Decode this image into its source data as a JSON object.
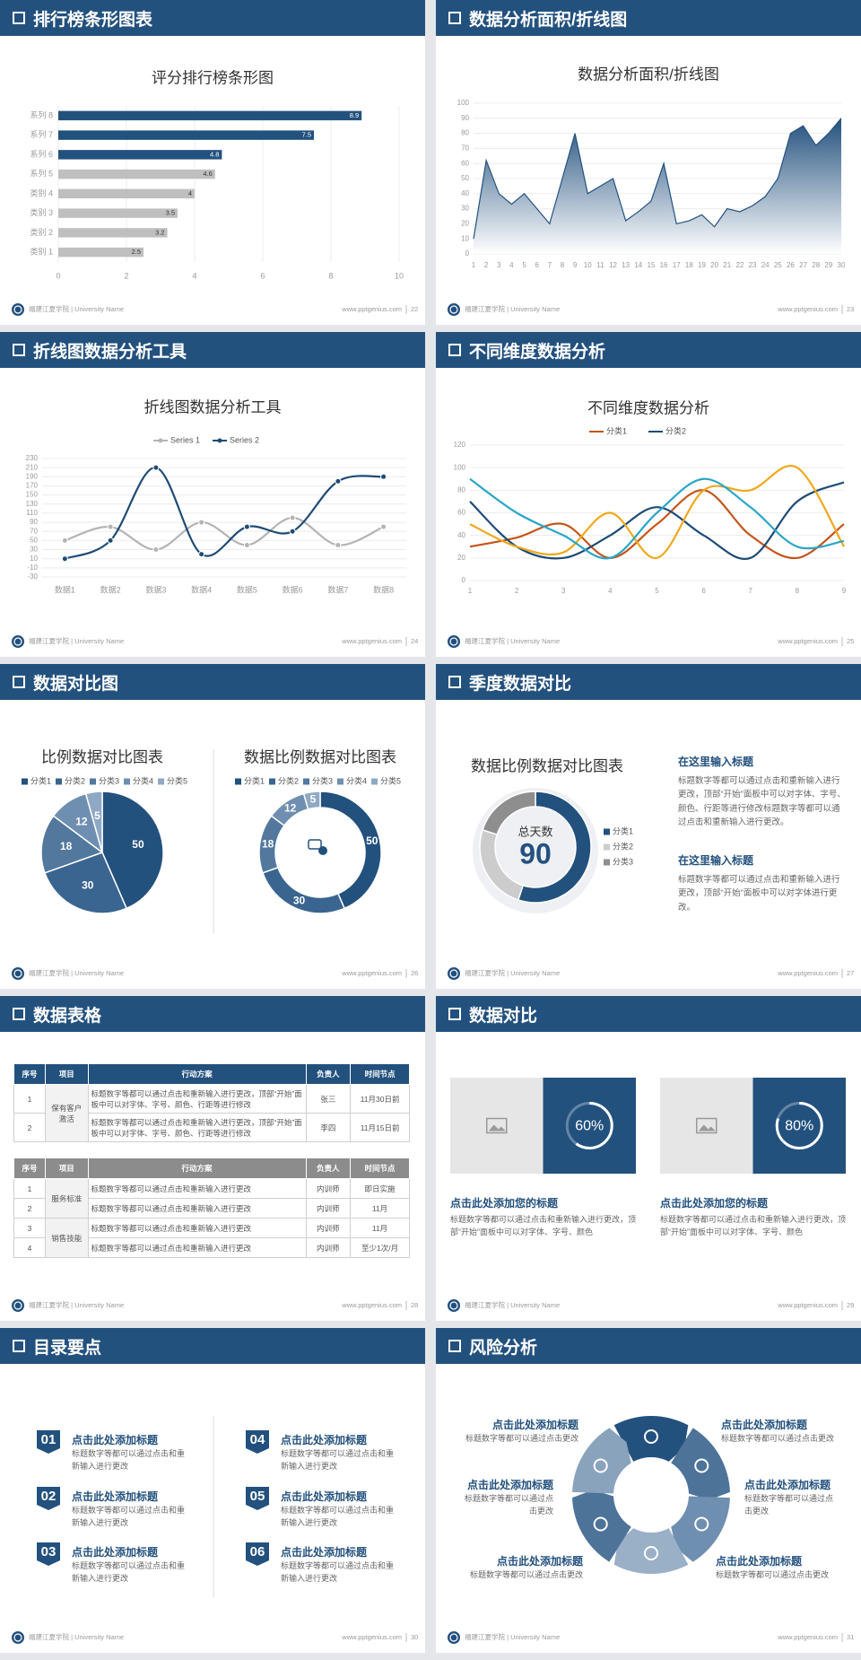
{
  "footer": {
    "school": "福建江夏学院 | University Name",
    "site": "www.pptgenius.com"
  },
  "slides": [
    {
      "title": "排行榜条形图表",
      "page": "22",
      "chart_data": {
        "type": "bar",
        "title": "评分排行榜条形图",
        "categories": [
          "系列 8",
          "系列 7",
          "系列 6",
          "系列 5",
          "类别 4",
          "类别 3",
          "类别 2",
          "类别 1"
        ],
        "values": [
          8.9,
          7.5,
          4.8,
          4.6,
          4,
          3.5,
          3.2,
          2.5
        ],
        "colors": [
          "#23517e",
          "#23517e",
          "#23517e",
          "#bfbfbf",
          "#bfbfbf",
          "#bfbfbf",
          "#bfbfbf",
          "#bfbfbf"
        ],
        "xlim": [
          0,
          10
        ],
        "xticks": [
          0,
          2,
          4,
          6,
          8,
          10
        ],
        "grid": true
      }
    },
    {
      "title": "数据分析面积/折线图",
      "page": "23",
      "chart_data": {
        "type": "area",
        "title": "数据分析面积/折线图",
        "x": [
          1,
          2,
          3,
          4,
          5,
          6,
          7,
          8,
          9,
          10,
          11,
          12,
          13,
          14,
          15,
          16,
          17,
          18,
          19,
          20,
          21,
          22,
          23,
          24,
          25,
          26,
          27,
          28,
          29,
          30
        ],
        "values": [
          10,
          62,
          40,
          33,
          40,
          30,
          20,
          50,
          80,
          40,
          45,
          50,
          22,
          28,
          35,
          60,
          20,
          22,
          26,
          18,
          30,
          28,
          32,
          38,
          50,
          80,
          85,
          72,
          80,
          90
        ],
        "color": "#23517e",
        "xlim": [
          1,
          30
        ],
        "ylim": [
          0,
          100
        ],
        "yticks": [
          0,
          10,
          20,
          30,
          40,
          50,
          60,
          70,
          80,
          90,
          100
        ],
        "grid": true
      }
    },
    {
      "title": "折线图数据分析工具",
      "page": "24",
      "chart_data": {
        "type": "line",
        "title": "折线图数据分析工具",
        "categories": [
          "数据1",
          "数据2",
          "数据3",
          "数据4",
          "数据5",
          "数据6",
          "数据7",
          "数据8"
        ],
        "series": [
          {
            "name": "Series 1",
            "color": "#b4b4b4",
            "values": [
              50,
              80,
              30,
              90,
              40,
              100,
              40,
              80
            ]
          },
          {
            "name": "Series 2",
            "color": "#1e4b75",
            "values": [
              10,
              50,
              210,
              20,
              80,
              70,
              180,
              190
            ]
          }
        ],
        "ylim": [
          -30,
          230
        ],
        "yticks": [
          -30,
          -10,
          10,
          30,
          50,
          70,
          90,
          110,
          130,
          150,
          170,
          190,
          210,
          230
        ],
        "grid": true,
        "smooth": true,
        "markers": true
      }
    },
    {
      "title": "不同维度数据分析",
      "page": "25",
      "chart_data": {
        "type": "line",
        "title": "不同维度数据分析",
        "x": [
          1,
          2,
          3,
          4,
          5,
          6,
          7,
          8,
          9
        ],
        "xlim": [
          1,
          9
        ],
        "series": [
          {
            "name": "分类1",
            "color": "#c4551b",
            "values": [
              30,
              38,
              50,
              20,
              50,
              80,
              40,
              20,
              50
            ]
          },
          {
            "name": "分类2",
            "color": "#1e4b75",
            "values": [
              70,
              30,
              20,
              40,
              65,
              40,
              20,
              70,
              87
            ]
          },
          {
            "color": "#f0a81c",
            "values": [
              50,
              30,
              25,
              60,
              20,
              80,
              80,
              100,
              30
            ]
          },
          {
            "color": "#2aa6c6",
            "values": [
              90,
              60,
              40,
              20,
              60,
              90,
              65,
              30,
              35
            ]
          }
        ],
        "ylim": [
          0,
          120
        ],
        "yticks": [
          0,
          20,
          40,
          60,
          80,
          100,
          120
        ],
        "grid": true,
        "smooth": true
      }
    },
    {
      "title": "数据对比图",
      "page": "26",
      "chart_data": [
        {
          "type": "pie",
          "title": "比例数据对比图表",
          "categories": [
            "分类1",
            "分类2",
            "分类3",
            "分类4",
            "分类5"
          ],
          "values": [
            50,
            30,
            18,
            12,
            5
          ],
          "colors": [
            "#23517e",
            "#3a6590",
            "#52789e",
            "#6f8fb0",
            "#8fa9c4"
          ]
        },
        {
          "type": "donut",
          "title": "数据比例数据对比图表",
          "categories": [
            "分类1",
            "分类2",
            "分类3",
            "分类4",
            "分类5"
          ],
          "values": [
            50,
            30,
            18,
            12,
            5
          ],
          "colors": [
            "#23517e",
            "#3a6590",
            "#52789e",
            "#6f8fb0",
            "#8fa9c4"
          ]
        }
      ]
    },
    {
      "title": "季度数据对比",
      "page": "27",
      "chart_data": {
        "type": "donut",
        "title": "数据比例数据对比图表",
        "center_title": "总天数",
        "center_value": 90,
        "categories": [
          "分类1",
          "分类2",
          "分类3"
        ],
        "values": [
          55,
          25,
          20
        ],
        "colors": [
          "#23517e",
          "#cccccc",
          "#8e8e8e"
        ]
      },
      "texts": [
        {
          "title": "在这里输入标题",
          "body": "标题数字等都可以通过点击和重新输入进行更改，顶部“开始”面板中可以对字体、字号、颜色、行距等进行修改标题数字等都可以通过点击和重新输入进行更改。"
        },
        {
          "title": "在这里输入标题",
          "body": "标题数字等都可以通过点击和重新输入进行更改，顶部“开始”面板中可以对字体进行更改。"
        }
      ]
    },
    {
      "title": "数据表格",
      "page": "28",
      "tables": [
        {
          "header": [
            "序号",
            "项目",
            "行动方案",
            "负责人",
            "时间节点"
          ],
          "header_color": "#23517e",
          "groups": [
            {
              "project": "保有客户激活",
              "rows": [
                [
                  "1",
                  "标题数字等都可以通过点击和重新输入进行更改，顶部“开始”面板中可以对字体、字号、颜色、行距等进行修改",
                  "张三",
                  "11月30日前"
                ],
                [
                  "2",
                  "标题数字等都可以通过点击和重新输入进行更改，顶部“开始”面板中可以对字体、字号、颜色、行距等进行修改",
                  "李四",
                  "11月15日前"
                ]
              ]
            }
          ]
        },
        {
          "header": [
            "序号",
            "项目",
            "行动方案",
            "负责人",
            "时间节点"
          ],
          "header_color": "#8c8c8c",
          "groups": [
            {
              "project": "服务标准",
              "rows": [
                [
                  "1",
                  "标题数字等都可以通过点击和重新输入进行更改",
                  "内训师",
                  "即日实施"
                ],
                [
                  "2",
                  "标题数字等都可以通过点击和重新输入进行更改",
                  "内训师",
                  "11月"
                ]
              ]
            },
            {
              "project": "销售技能",
              "rows": [
                [
                  "3",
                  "标题数字等都可以通过点击和重新输入进行更改",
                  "内训师",
                  "11月"
                ],
                [
                  "4",
                  "标题数字等都可以通过点击和重新输入进行更改",
                  "内训师",
                  "至少1次/月"
                ]
              ]
            }
          ]
        }
      ]
    },
    {
      "title": "数据对比",
      "page": "29",
      "cards": [
        {
          "percent": {
            "value": 60,
            "label": "60%"
          },
          "title": "点击此处添加您的标题",
          "body": "标题数字等都可以通过点击和重新输入进行更改，顶部“开始”面板中可以对字体、字号、颜色"
        },
        {
          "percent": {
            "value": 80,
            "label": "80%"
          },
          "title": "点击此处添加您的标题",
          "body": "标题数字等都可以通过点击和重新输入进行更改，顶部“开始”面板中可以对字体、字号、颜色"
        }
      ]
    },
    {
      "title": "目录要点",
      "page": "30",
      "items": [
        {
          "number": "01",
          "title": "点击此处添加标题",
          "body": "标题数字等都可以通过点击和重新输入进行更改"
        },
        {
          "number": "02",
          "title": "点击此处添加标题",
          "body": "标题数字等都可以通过点击和重新输入进行更改"
        },
        {
          "number": "03",
          "title": "点击此处添加标题",
          "body": "标题数字等都可以通过点击和重新输入进行更改"
        },
        {
          "number": "04",
          "title": "点击此处添加标题",
          "body": "标题数字等都可以通过点击和重新输入进行更改"
        },
        {
          "number": "05",
          "title": "点击此处添加标题",
          "body": "标题数字等都可以通过点击和重新输入进行更改"
        },
        {
          "number": "06",
          "title": "点击此处添加标题",
          "body": "标题数字等都可以通过点击和重新输入进行更改"
        }
      ]
    },
    {
      "title": "风险分析",
      "page": "31",
      "cycle": [
        {
          "title": "点击此处添加标题",
          "body": "标题数字等都可以通过点击更改"
        },
        {
          "title": "点击此处添加标题",
          "body": "标题数字等都可以通过点击更改"
        },
        {
          "title": "点击此处添加标题",
          "body": "标题数字等都可以通过点击更改"
        },
        {
          "title": "点击此处添加标题",
          "body": "标题数字等都可以通过点击更改"
        },
        {
          "title": "点击此处添加标题",
          "body": "标题数字等都可以通过点击更改"
        },
        {
          "title": "点击此处添加标题",
          "body": "标题数字等都可以通过点击更改"
        }
      ]
    }
  ]
}
